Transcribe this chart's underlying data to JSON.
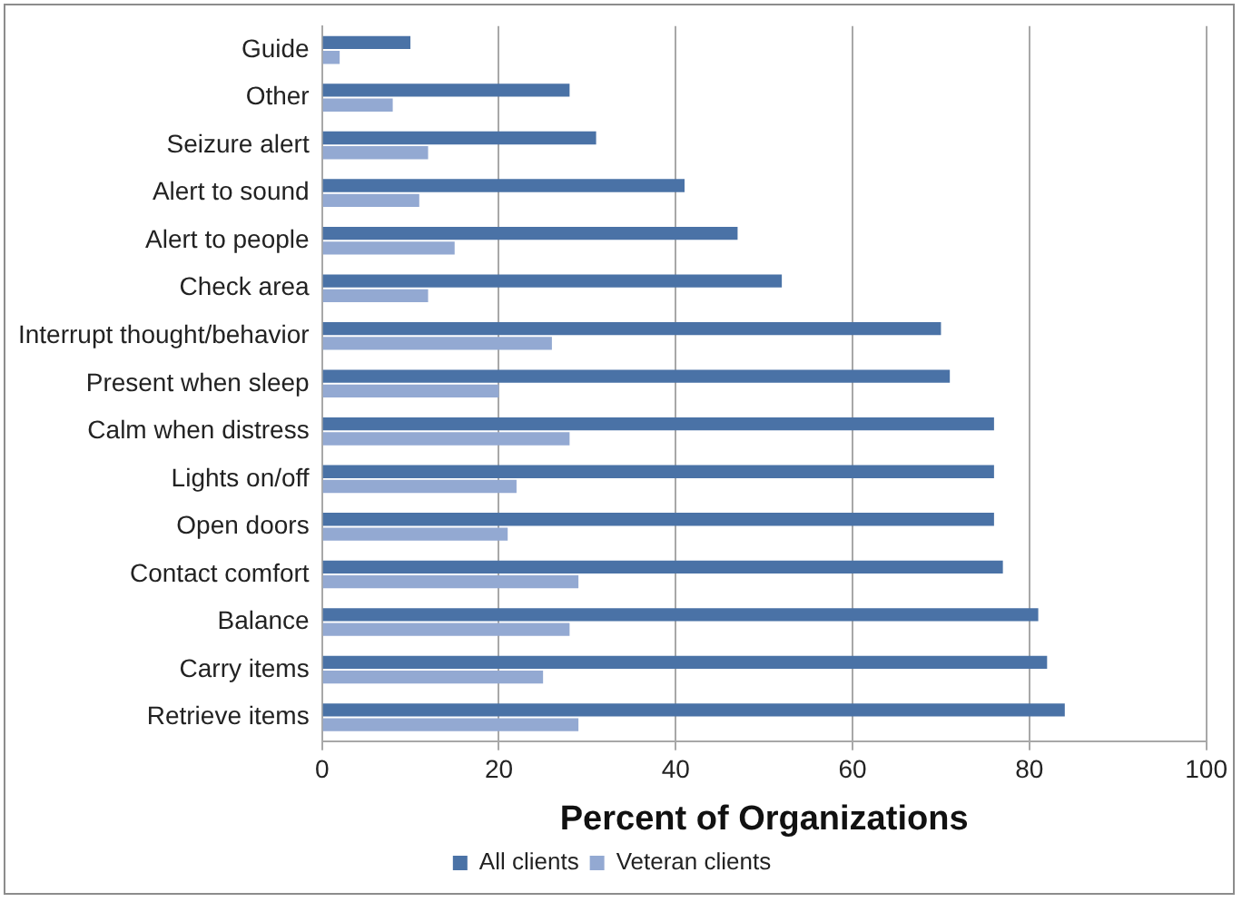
{
  "chart_data": {
    "type": "bar",
    "orientation": "horizontal",
    "xlabel": "Percent of Organizations",
    "categories": [
      "Guide",
      "Other",
      "Seizure alert",
      "Alert to sound",
      "Alert to people",
      "Check area",
      "Interrupt thought/behavior",
      "Present when sleep",
      "Calm when distress",
      "Lights on/off",
      "Open doors",
      "Contact comfort",
      "Balance",
      "Carry items",
      "Retrieve items"
    ],
    "series": [
      {
        "name": "All clients",
        "color": "#4a72a6",
        "values": [
          10,
          28,
          31,
          41,
          47,
          52,
          70,
          71,
          76,
          76,
          76,
          77,
          81,
          82,
          84
        ]
      },
      {
        "name": "Veteran clients",
        "color": "#93a9d2",
        "values": [
          2,
          8,
          12,
          11,
          15,
          12,
          26,
          20,
          28,
          22,
          21,
          29,
          28,
          25,
          29
        ]
      }
    ],
    "xlim": [
      0,
      100
    ],
    "xticks": [
      0,
      20,
      40,
      60,
      80,
      100
    ],
    "grid": "x",
    "legend": "bottom"
  }
}
